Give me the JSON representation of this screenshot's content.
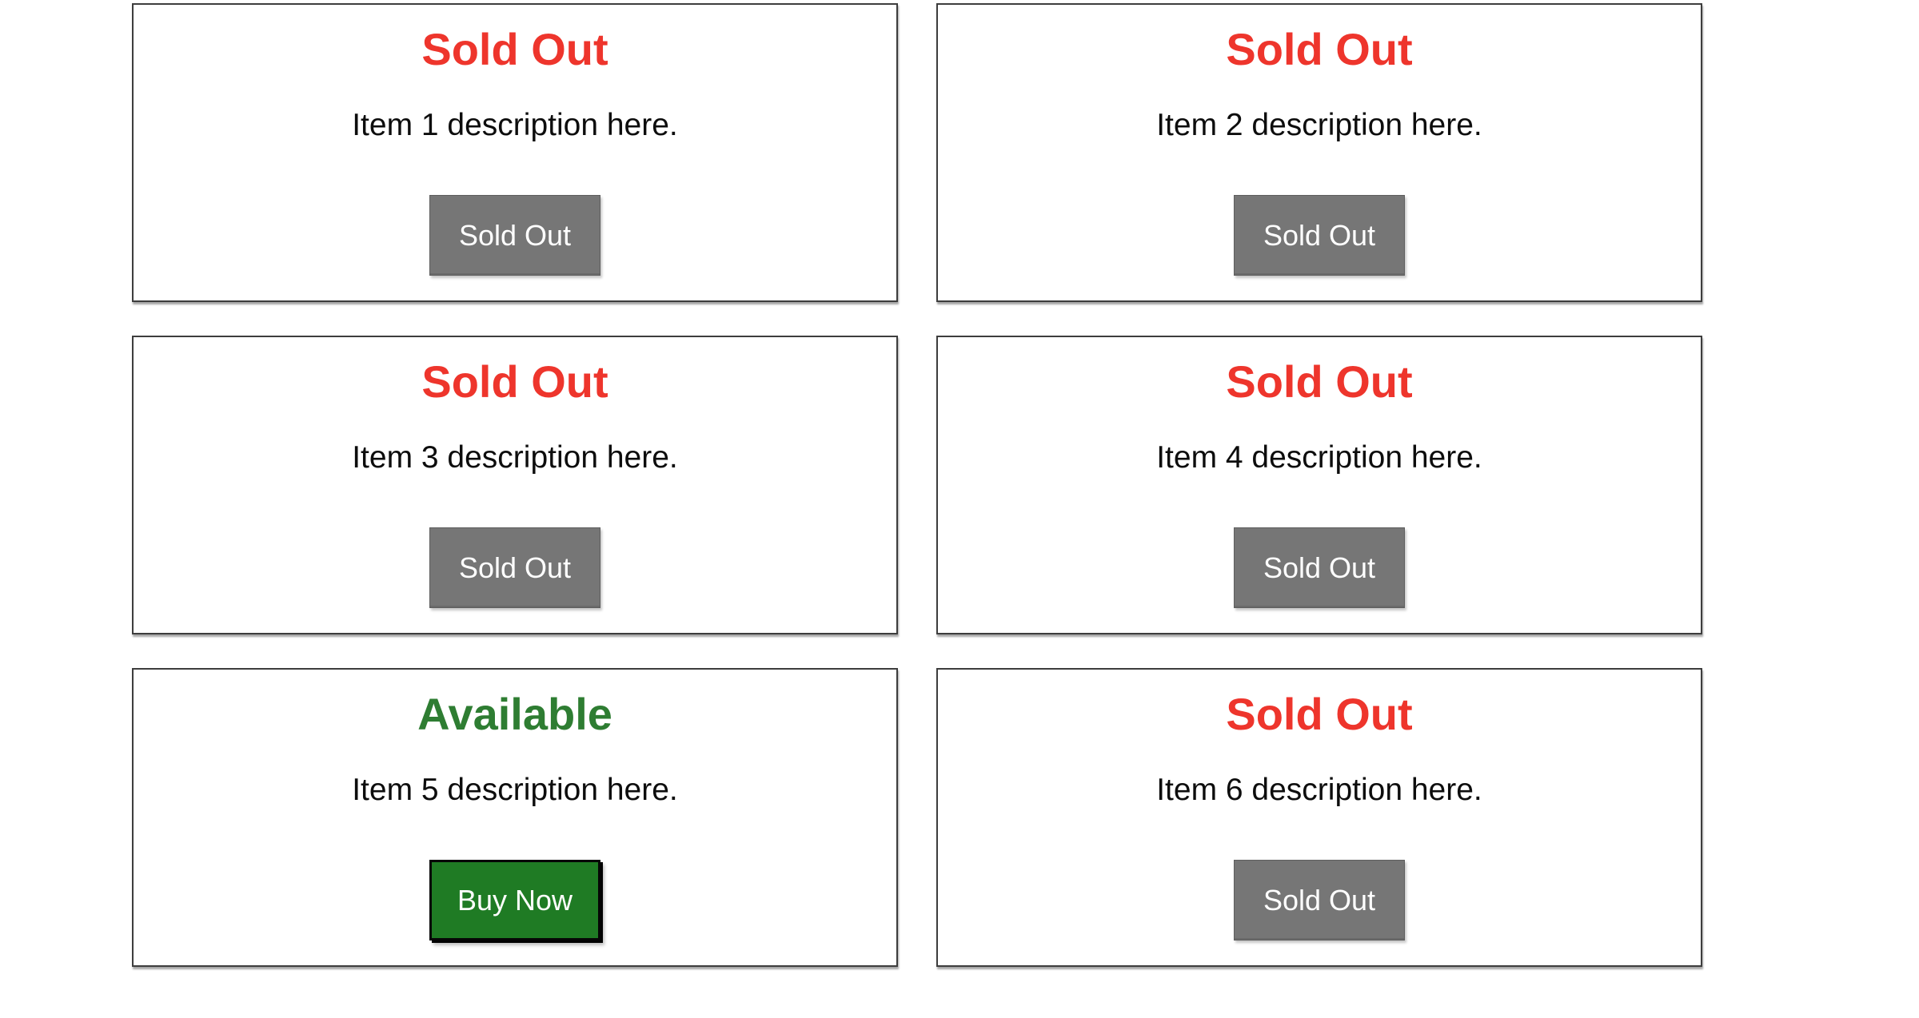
{
  "colors": {
    "sold_out_red": "#ee352c",
    "available_green": "#2e7d32",
    "sold_button_gray": "#767676",
    "buy_button_green": "#1f7b24",
    "button_text": "#ffffff",
    "card_border": "#3d3d3d",
    "description_text": "#0d0d0d",
    "page_background": "#ffffff"
  },
  "cards": [
    {
      "status_label": "Sold Out",
      "status_key": "sold-out",
      "description": "Item 1 description here.",
      "button_label": "Sold Out",
      "button_variant": "sold-out"
    },
    {
      "status_label": "Sold Out",
      "status_key": "sold-out",
      "description": "Item 2 description here.",
      "button_label": "Sold Out",
      "button_variant": "sold-out"
    },
    {
      "status_label": "Sold Out",
      "status_key": "sold-out",
      "description": "Item 3 description here.",
      "button_label": "Sold Out",
      "button_variant": "sold-out"
    },
    {
      "status_label": "Sold Out",
      "status_key": "sold-out",
      "description": "Item 4 description here.",
      "button_label": "Sold Out",
      "button_variant": "sold-out"
    },
    {
      "status_label": "Available",
      "status_key": "available",
      "description": "Item 5 description here.",
      "button_label": "Buy Now",
      "button_variant": "buy-now"
    },
    {
      "status_label": "Sold Out",
      "status_key": "sold-out",
      "description": "Item 6 description here.",
      "button_label": "Sold Out",
      "button_variant": "sold-out"
    }
  ]
}
